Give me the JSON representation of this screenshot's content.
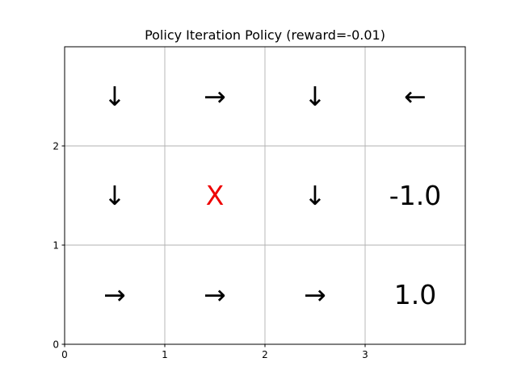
{
  "chart_data": {
    "type": "table",
    "title": "Policy Iteration Policy (reward=-0.01)",
    "xlabel": "",
    "ylabel": "",
    "xlim": [
      0,
      4
    ],
    "ylim": [
      0,
      3
    ],
    "x_ticks": [
      "0",
      "1",
      "2",
      "3"
    ],
    "y_ticks": [
      "0",
      "1",
      "2"
    ],
    "grid": true,
    "rows": [
      [
        "↓",
        "→",
        "↓",
        "←"
      ],
      [
        "↓",
        "X",
        "↓",
        "-1.0"
      ],
      [
        "→",
        "→",
        "→",
        "1.0"
      ]
    ],
    "cell_colors": [
      [
        "#000000",
        "#000000",
        "#000000",
        "#000000"
      ],
      [
        "#000000",
        "#ee0000",
        "#000000",
        "#000000"
      ],
      [
        "#000000",
        "#000000",
        "#000000",
        "#000000"
      ]
    ]
  }
}
